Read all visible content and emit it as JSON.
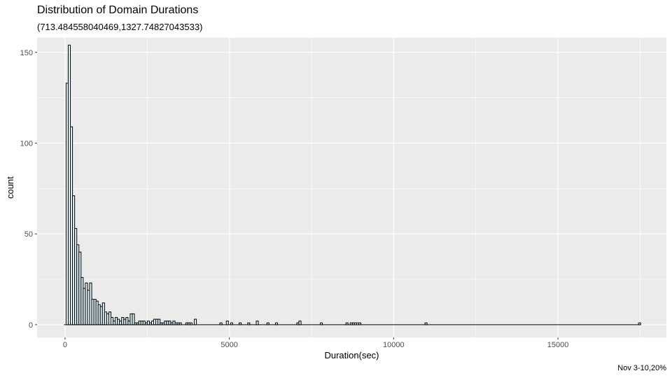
{
  "chart_data": {
    "type": "bar",
    "title": "Distribution of Domain Durations",
    "subtitle": "(713.484558040469,1327.74827043533)",
    "caption": "Nov 3-10,20%",
    "xlabel": "Duration(sec)",
    "ylabel": "count",
    "xlim": [
      -850,
      18300
    ],
    "ylim": [
      -7,
      158
    ],
    "x_ticks": [
      0,
      5000,
      10000,
      15000
    ],
    "x_tick_labels": [
      "0",
      "5000",
      "10000",
      "15000"
    ],
    "y_ticks": [
      0,
      50,
      100,
      150
    ],
    "y_tick_labels": [
      "0",
      "50",
      "100",
      "150"
    ],
    "grid": true,
    "bin_width": 65,
    "bar_fill": "#e0f4fb",
    "bar_stroke": "#000000",
    "panel_bg": "#ebebeb",
    "x": [
      65,
      130,
      195,
      260,
      325,
      390,
      455,
      520,
      585,
      650,
      715,
      780,
      845,
      910,
      975,
      1040,
      1105,
      1170,
      1235,
      1300,
      1365,
      1430,
      1495,
      1560,
      1625,
      1690,
      1755,
      1820,
      1885,
      1950,
      2015,
      2080,
      2145,
      2210,
      2275,
      2340,
      2405,
      2470,
      2535,
      2600,
      2665,
      2730,
      2795,
      2860,
      2925,
      2990,
      3055,
      3120,
      3185,
      3250,
      3315,
      3380,
      3445,
      3510,
      3705,
      3770,
      3835,
      3965,
      4745,
      4940,
      5070,
      5330,
      5590,
      5850,
      6175,
      6435,
      7085,
      7150,
      7800,
      8580,
      8710,
      8775,
      8840,
      8905,
      8970,
      10985,
      17485
    ],
    "values": [
      133,
      154,
      109,
      71,
      53,
      44,
      40,
      26,
      20,
      23,
      19,
      23,
      14,
      14,
      13,
      11,
      10,
      12,
      7,
      6,
      7,
      4,
      2,
      4,
      3,
      2,
      4,
      3,
      4,
      2,
      6,
      6,
      1,
      1,
      2,
      2,
      2,
      1,
      2,
      1,
      2,
      3,
      3,
      3,
      1,
      1,
      2,
      2,
      2,
      1,
      2,
      1,
      1,
      1,
      1,
      1,
      1,
      3,
      1,
      2,
      1,
      1,
      1,
      2,
      1,
      1,
      1,
      2,
      1,
      1,
      1,
      1,
      1,
      1,
      1,
      1,
      1
    ]
  }
}
